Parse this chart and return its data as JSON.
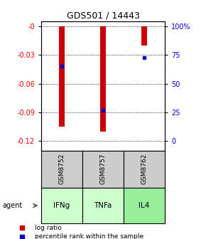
{
  "title": "GDS501 / 14443",
  "samples": [
    "GSM8752",
    "GSM8757",
    "GSM8762"
  ],
  "agents": [
    "IFNg",
    "TNFa",
    "IL4"
  ],
  "log_ratios": [
    -0.105,
    -0.11,
    -0.02
  ],
  "percentile_ranks": [
    0.65,
    0.27,
    0.73
  ],
  "ylim_left": [
    -0.13,
    0.005
  ],
  "ylim_right": [
    -0.13,
    0.005
  ],
  "yticks_left": [
    0.0,
    -0.03,
    -0.06,
    -0.09,
    -0.12
  ],
  "yticks_right_vals": [
    0.0,
    -0.03,
    -0.06,
    -0.09,
    -0.12
  ],
  "yticks_right_labels": [
    "100%",
    "75",
    "50",
    "25",
    "0"
  ],
  "bar_color": "#cc0000",
  "point_color": "#0000cc",
  "sample_box_color": "#cccccc",
  "agent_colors": [
    "#ccffcc",
    "#ccffcc",
    "#99ee99"
  ],
  "legend_labels": [
    "log ratio",
    "percentile rank within the sample"
  ],
  "bar_width": 0.15
}
